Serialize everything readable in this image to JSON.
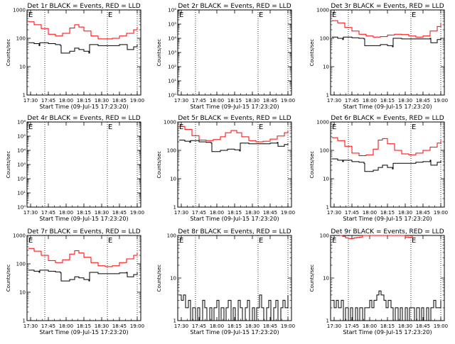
{
  "chart_data": [
    {
      "type": "line",
      "title": "Det 1r BLACK = Events, RED = LLD",
      "xlabel": "Start Time (09-Jul-15 17:23:20)",
      "ylabel": "Counts/sec",
      "yscale": "log",
      "ylim": [
        1,
        1000
      ],
      "yticks": [
        "1",
        "10",
        "100",
        "1000"
      ],
      "xticks": [
        "17:30",
        "17:45",
        "18:00",
        "18:15",
        "18:30",
        "18:45",
        "19:00"
      ],
      "xlim": [
        17.45,
        19.05
      ],
      "markers": [
        {
          "label": "E",
          "x": 17.47
        },
        {
          "label": "E",
          "x": 18.59
        }
      ],
      "dotted_lines": [
        17.7,
        18.58,
        19.0
      ],
      "series": [
        {
          "name": "LLD",
          "color": "#ff0000",
          "x": [
            17.47,
            17.55,
            17.65,
            17.75,
            17.85,
            17.95,
            18.05,
            18.12,
            18.18,
            18.25,
            18.35,
            18.45,
            18.55,
            18.65,
            18.75,
            18.85,
            18.95,
            19.0
          ],
          "y": [
            380,
            300,
            220,
            140,
            120,
            150,
            230,
            300,
            250,
            180,
            120,
            95,
            95,
            100,
            120,
            150,
            200,
            250
          ]
        },
        {
          "name": "Events",
          "color": "#000000",
          "x": [
            17.47,
            17.55,
            17.62,
            17.63,
            17.75,
            17.85,
            17.92,
            17.93,
            18.05,
            18.12,
            18.18,
            18.25,
            18.32,
            18.33,
            18.45,
            18.55,
            18.65,
            18.75,
            18.85,
            18.86,
            18.95,
            19.0
          ],
          "y": [
            70,
            65,
            55,
            70,
            65,
            60,
            55,
            30,
            35,
            45,
            40,
            35,
            30,
            60,
            55,
            55,
            55,
            60,
            60,
            40,
            50,
            60
          ]
        }
      ]
    },
    {
      "type": "line",
      "title": "Det 2r BLACK = Events, RED = LLD",
      "xlabel": "Start Time (09-Jul-15 17:23:20)",
      "ylabel": "Counts/sec",
      "yscale": "log",
      "ylim": [
        1,
        1000000
      ],
      "yticks": [
        "10⁰",
        "10¹",
        "10²",
        "10³",
        "10⁴",
        "10⁵",
        "10⁶"
      ],
      "xticks": [
        "17:30",
        "17:45",
        "18:00",
        "18:15",
        "18:30",
        "18:45",
        "19:00"
      ],
      "xlim": [
        17.45,
        19.05
      ],
      "markers": [
        {
          "label": "E",
          "x": 17.47
        },
        {
          "label": "E",
          "x": 18.59
        }
      ],
      "dotted_lines": [
        17.7,
        18.58,
        19.0
      ],
      "series": []
    },
    {
      "type": "line",
      "title": "Det 3r BLACK = Events, RED = LLD",
      "xlabel": "Start Time (09-Jul-15 17:23:20)",
      "ylabel": "Counts/sec",
      "yscale": "log",
      "ylim": [
        1,
        1000
      ],
      "yticks": [
        "1",
        "10",
        "100",
        "1000"
      ],
      "xticks": [
        "17:30",
        "17:45",
        "18:00",
        "18:15",
        "18:30",
        "18:45",
        "19:00"
      ],
      "xlim": [
        17.45,
        19.05
      ],
      "markers": [
        {
          "label": "E",
          "x": 17.47
        },
        {
          "label": "E",
          "x": 18.59
        }
      ],
      "dotted_lines": [
        17.7,
        18.58,
        19.0
      ],
      "series": [
        {
          "name": "LLD",
          "color": "#ff0000",
          "x": [
            17.47,
            17.55,
            17.65,
            17.75,
            17.85,
            17.95,
            18.05,
            18.15,
            18.25,
            18.35,
            18.45,
            18.55,
            18.65,
            18.75,
            18.85,
            18.95,
            19.0
          ],
          "y": [
            420,
            350,
            240,
            180,
            140,
            120,
            110,
            115,
            130,
            140,
            135,
            120,
            110,
            120,
            180,
            260,
            330
          ]
        },
        {
          "name": "Events",
          "color": "#000000",
          "x": [
            17.47,
            17.55,
            17.62,
            17.63,
            17.75,
            17.85,
            17.92,
            17.93,
            18.05,
            18.15,
            18.25,
            18.32,
            18.33,
            18.45,
            18.55,
            18.65,
            18.75,
            18.85,
            18.86,
            18.95,
            19.0
          ],
          "y": [
            110,
            100,
            90,
            110,
            105,
            100,
            95,
            55,
            55,
            60,
            55,
            50,
            100,
            95,
            95,
            95,
            95,
            100,
            70,
            90,
            100
          ]
        }
      ]
    },
    {
      "type": "line",
      "title": "Det 4r BLACK = Events, RED = LLD",
      "xlabel": "Start Time (09-Jul-15 17:23:20)",
      "ylabel": "Counts/sec",
      "yscale": "log",
      "ylim": [
        1,
        1000000
      ],
      "yticks": [
        "10⁰",
        "10¹",
        "10²",
        "10³",
        "10⁴",
        "10⁵",
        "10⁶"
      ],
      "xticks": [
        "17:30",
        "17:45",
        "18:00",
        "18:15",
        "18:30",
        "18:45",
        "19:00"
      ],
      "xlim": [
        17.45,
        19.05
      ],
      "markers": [
        {
          "label": "E",
          "x": 17.47
        },
        {
          "label": "E",
          "x": 18.59
        }
      ],
      "dotted_lines": [
        17.7,
        18.58,
        19.0
      ],
      "series": []
    },
    {
      "type": "line",
      "title": "Det 5r BLACK = Events, RED = LLD",
      "xlabel": "Start Time (09-Jul-15 17:23:20)",
      "ylabel": "Counts/sec",
      "yscale": "log",
      "ylim": [
        1,
        1000
      ],
      "yticks": [
        "1",
        "10",
        "100",
        "1000"
      ],
      "xticks": [
        "17:30",
        "17:45",
        "18:00",
        "18:15",
        "18:30",
        "18:45",
        "19:00"
      ],
      "xlim": [
        17.45,
        19.05
      ],
      "markers": [
        {
          "label": "E",
          "x": 17.47
        },
        {
          "label": "E",
          "x": 18.59
        }
      ],
      "dotted_lines": [
        17.7,
        18.58,
        19.0
      ],
      "series": [
        {
          "name": "LLD",
          "color": "#ff0000",
          "x": [
            17.47,
            17.55,
            17.65,
            17.75,
            17.85,
            17.95,
            18.05,
            18.12,
            18.2,
            18.28,
            18.35,
            18.45,
            18.55,
            18.65,
            18.75,
            18.85,
            18.95,
            19.0
          ],
          "y": [
            700,
            550,
            330,
            230,
            220,
            240,
            300,
            420,
            500,
            420,
            300,
            220,
            200,
            210,
            250,
            320,
            420,
            480
          ]
        },
        {
          "name": "Events",
          "color": "#000000",
          "x": [
            17.47,
            17.55,
            17.62,
            17.63,
            17.75,
            17.85,
            17.92,
            17.93,
            18.05,
            18.15,
            18.25,
            18.32,
            18.33,
            18.45,
            18.55,
            18.65,
            18.75,
            18.85,
            18.86,
            18.95,
            19.0
          ],
          "y": [
            230,
            210,
            190,
            220,
            200,
            190,
            180,
            90,
            100,
            110,
            105,
            95,
            180,
            170,
            170,
            170,
            180,
            190,
            140,
            160,
            180
          ]
        }
      ]
    },
    {
      "type": "line",
      "title": "Det 6r BLACK = Events, RED = LLD",
      "xlabel": "Start Time (09-Jul-15 17:23:20)",
      "ylabel": "Counts/sec",
      "yscale": "log",
      "ylim": [
        1,
        1000
      ],
      "yticks": [
        "1",
        "10",
        "100",
        "1000"
      ],
      "xticks": [
        "17:30",
        "17:45",
        "18:00",
        "18:15",
        "18:30",
        "18:45",
        "19:00"
      ],
      "xlim": [
        17.45,
        19.05
      ],
      "markers": [
        {
          "label": "E",
          "x": 17.47
        },
        {
          "label": "E",
          "x": 18.59
        }
      ],
      "dotted_lines": [
        17.7,
        18.58,
        19.0
      ],
      "series": [
        {
          "name": "LLD",
          "color": "#ff0000",
          "x": [
            17.47,
            17.55,
            17.65,
            17.75,
            17.85,
            17.95,
            18.05,
            18.12,
            18.18,
            18.25,
            18.35,
            18.45,
            18.55,
            18.65,
            18.75,
            18.85,
            18.95,
            19.0
          ],
          "y": [
            280,
            220,
            140,
            80,
            65,
            70,
            110,
            230,
            260,
            170,
            100,
            75,
            70,
            80,
            100,
            130,
            180,
            230
          ]
        },
        {
          "name": "Events",
          "color": "#000000",
          "x": [
            17.47,
            17.55,
            17.62,
            17.63,
            17.75,
            17.85,
            17.92,
            17.93,
            18.05,
            18.12,
            18.18,
            18.25,
            18.32,
            18.33,
            18.45,
            18.55,
            18.65,
            18.75,
            18.85,
            18.86,
            18.95,
            19.0
          ],
          "y": [
            50,
            45,
            40,
            45,
            40,
            38,
            35,
            18,
            20,
            25,
            30,
            25,
            22,
            35,
            35,
            35,
            38,
            40,
            45,
            30,
            38,
            45
          ]
        }
      ]
    },
    {
      "type": "line",
      "title": "Det 7r BLACK = Events, RED = LLD",
      "xlabel": "Start Time (09-Jul-15 17:23:20)",
      "ylabel": "Counts/sec",
      "yscale": "log",
      "ylim": [
        1,
        1000
      ],
      "yticks": [
        "1",
        "10",
        "100",
        "1000"
      ],
      "xticks": [
        "17:30",
        "17:45",
        "18:00",
        "18:15",
        "18:30",
        "18:45",
        "19:00"
      ],
      "xlim": [
        17.45,
        19.05
      ],
      "markers": [
        {
          "label": "E",
          "x": 17.47
        },
        {
          "label": "E",
          "x": 18.59
        }
      ],
      "dotted_lines": [
        17.7,
        18.58,
        19.0
      ],
      "series": [
        {
          "name": "LLD",
          "color": "#ff0000",
          "x": [
            17.47,
            17.55,
            17.65,
            17.75,
            17.85,
            17.95,
            18.05,
            18.12,
            18.18,
            18.25,
            18.35,
            18.45,
            18.55,
            18.65,
            18.75,
            18.85,
            18.95,
            19.0
          ],
          "y": [
            350,
            280,
            200,
            130,
            110,
            140,
            220,
            290,
            240,
            170,
            110,
            85,
            80,
            85,
            110,
            150,
            200,
            250
          ]
        },
        {
          "name": "Events",
          "color": "#000000",
          "x": [
            17.47,
            17.55,
            17.62,
            17.63,
            17.75,
            17.85,
            17.92,
            17.93,
            18.05,
            18.12,
            18.18,
            18.25,
            18.32,
            18.33,
            18.45,
            18.55,
            18.65,
            18.75,
            18.85,
            18.86,
            18.95,
            19.0
          ],
          "y": [
            60,
            55,
            50,
            60,
            55,
            52,
            48,
            25,
            28,
            35,
            32,
            28,
            25,
            50,
            45,
            45,
            45,
            48,
            50,
            35,
            42,
            50
          ]
        }
      ]
    },
    {
      "type": "line",
      "title": "Det 8r BLACK = Events, RED = LLD",
      "xlabel": "Start Time (09-Jul-15 17:23:20)",
      "ylabel": "Counts/sec",
      "yscale": "log",
      "ylim": [
        1,
        100
      ],
      "yticks": [
        "1",
        "10",
        "100"
      ],
      "xticks": [
        "17:30",
        "17:45",
        "18:00",
        "18:15",
        "18:30",
        "18:45",
        "19:00"
      ],
      "xlim": [
        17.45,
        19.05
      ],
      "markers": [
        {
          "label": "E",
          "x": 17.47
        },
        {
          "label": "E",
          "x": 18.59
        }
      ],
      "dotted_lines": [
        17.7,
        18.58,
        19.0
      ],
      "series": [
        {
          "name": "Events",
          "color": "#000000",
          "x": [
            17.47,
            17.5,
            17.53,
            17.56,
            17.6,
            17.63,
            17.66,
            17.7,
            17.73,
            17.76,
            17.8,
            17.83,
            17.86,
            17.9,
            17.93,
            17.96,
            18.0,
            18.03,
            18.06,
            18.1,
            18.13,
            18.16,
            18.2,
            18.23,
            18.26,
            18.3,
            18.33,
            18.36,
            18.4,
            18.43,
            18.46,
            18.5,
            18.53,
            18.56,
            18.6,
            18.63,
            18.66,
            18.7,
            18.73,
            18.76,
            18.8,
            18.83,
            18.86,
            18.9,
            18.93,
            18.96,
            19.0
          ],
          "y": [
            4,
            3,
            4,
            2,
            3,
            1,
            2,
            1,
            2,
            1,
            3,
            2,
            1,
            2,
            1,
            2,
            3,
            1,
            2,
            1,
            2,
            3,
            1,
            2,
            1,
            3,
            2,
            1,
            2,
            3,
            1,
            2,
            1,
            2,
            4,
            2,
            1,
            2,
            3,
            1,
            2,
            3,
            1,
            2,
            3,
            2,
            4
          ]
        }
      ]
    },
    {
      "type": "line",
      "title": "Det 9r BLACK = Events, RED = LLD",
      "xlabel": "Start Time (09-Jul-15 17:23:20)",
      "ylabel": "Counts/sec",
      "yscale": "log",
      "ylim": [
        1,
        100
      ],
      "yticks": [
        "1",
        "10",
        "100"
      ],
      "xticks": [
        "17:30",
        "17:45",
        "18:00",
        "18:15",
        "18:30",
        "18:45",
        "19:00"
      ],
      "xlim": [
        17.45,
        19.05
      ],
      "markers": [
        {
          "label": "E",
          "x": 17.47
        },
        {
          "label": "E",
          "x": 18.59
        }
      ],
      "dotted_lines": [
        17.7,
        18.58,
        19.0
      ],
      "series": [
        {
          "name": "LLD",
          "color": "#ff0000",
          "x": [
            17.58,
            17.62,
            17.66,
            17.7,
            17.74,
            17.78,
            17.82,
            17.86,
            17.9,
            18.45,
            18.5,
            18.55,
            18.6
          ],
          "y": [
            100,
            95,
            88,
            85,
            85,
            88,
            90,
            92,
            100,
            100,
            92,
            90,
            100
          ]
        },
        {
          "name": "Events",
          "color": "#000000",
          "x": [
            17.47,
            17.5,
            17.53,
            17.56,
            17.6,
            17.63,
            17.66,
            17.7,
            17.73,
            17.76,
            17.8,
            17.83,
            17.86,
            17.9,
            17.93,
            17.96,
            18.0,
            18.03,
            18.06,
            18.1,
            18.13,
            18.16,
            18.2,
            18.23,
            18.26,
            18.3,
            18.33,
            18.36,
            18.4,
            18.43,
            18.46,
            18.5,
            18.53,
            18.56,
            18.6,
            18.63,
            18.66,
            18.7,
            18.73,
            18.76,
            18.8,
            18.83,
            18.86,
            18.9,
            18.93,
            18.96,
            19.0
          ],
          "y": [
            3,
            2,
            3,
            2,
            3,
            1,
            2,
            1,
            2,
            1,
            2,
            1,
            2,
            1,
            2,
            2,
            3,
            2,
            3,
            4,
            5,
            4,
            3,
            2,
            3,
            2,
            1,
            2,
            1,
            2,
            1,
            2,
            1,
            2,
            2,
            1,
            2,
            1,
            2,
            1,
            2,
            1,
            2,
            3,
            2,
            2,
            3
          ]
        }
      ]
    }
  ]
}
